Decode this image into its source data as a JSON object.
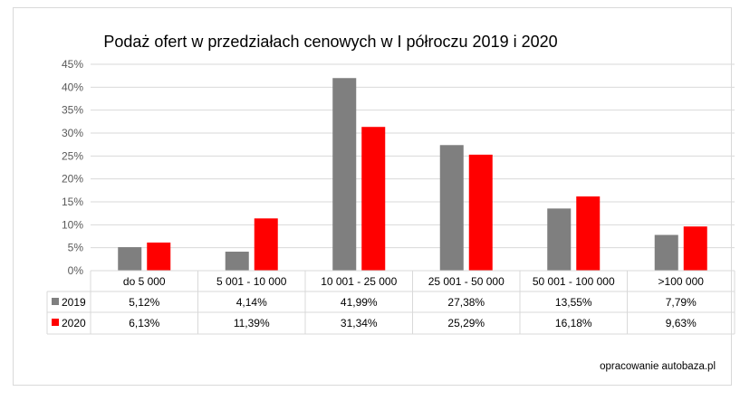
{
  "chart_data": {
    "type": "bar",
    "title": "Podaż ofert w przedziałach cenowych w I półroczu 2019 i 2020",
    "categories": [
      "do 5 000",
      "5 001 - 10 000",
      "10 001 - 25 000",
      "25 001 - 50 000",
      "50 001 - 100 000",
      ">100 000"
    ],
    "series": [
      {
        "name": "2019",
        "color": "#7f7f7f",
        "values": [
          5.12,
          4.14,
          41.99,
          27.38,
          13.55,
          7.79
        ],
        "labels": [
          "5,12%",
          "4,14%",
          "41,99%",
          "27,38%",
          "13,55%",
          "7,79%"
        ]
      },
      {
        "name": "2020",
        "color": "#ff0000",
        "values": [
          6.13,
          11.39,
          31.34,
          25.29,
          16.18,
          9.63
        ],
        "labels": [
          "6,13%",
          "11,39%",
          "31,34%",
          "25,29%",
          "16,18%",
          "9,63%"
        ]
      }
    ],
    "ylim": [
      0,
      45
    ],
    "yticks": [
      "0%",
      "5%",
      "10%",
      "15%",
      "20%",
      "25%",
      "30%",
      "35%",
      "40%",
      "45%"
    ],
    "grid": true,
    "legend": "data-table",
    "source": "opracowanie autobaza.pl"
  }
}
